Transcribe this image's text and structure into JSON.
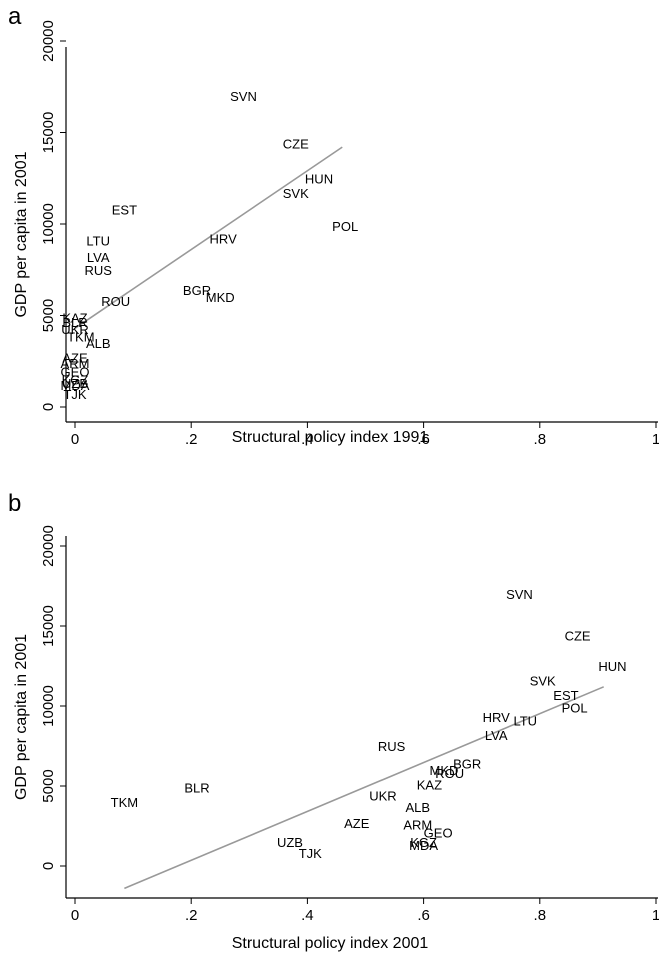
{
  "chart_data": [
    {
      "type": "scatter",
      "panel_label": "a",
      "xlabel": "Structural policy index 1991",
      "ylabel": "GDP per capita in 2001",
      "xlim": [
        0,
        1
      ],
      "ylim": [
        0,
        20000
      ],
      "x_ticks": [
        0,
        0.2,
        0.4,
        0.6,
        0.8,
        1
      ],
      "x_tick_labels": [
        "0",
        ".2",
        ".4",
        ".6",
        ".8",
        "1"
      ],
      "y_ticks": [
        0,
        5000,
        10000,
        15000,
        20000
      ],
      "y_tick_labels": [
        "0",
        "5000",
        "10000",
        "15000",
        "20000"
      ],
      "grid": false,
      "fit_line": {
        "x": [
          0,
          0.46
        ],
        "y": [
          4300,
          14200
        ],
        "color": "#999999"
      },
      "points": [
        {
          "label": "SVN",
          "x": 0.29,
          "y": 17000
        },
        {
          "label": "CZE",
          "x": 0.38,
          "y": 14400
        },
        {
          "label": "HUN",
          "x": 0.42,
          "y": 12500
        },
        {
          "label": "SVK",
          "x": 0.38,
          "y": 11700
        },
        {
          "label": "EST",
          "x": 0.085,
          "y": 10800
        },
        {
          "label": "POL",
          "x": 0.465,
          "y": 9900
        },
        {
          "label": "LTU",
          "x": 0.04,
          "y": 9100
        },
        {
          "label": "HRV",
          "x": 0.255,
          "y": 9200
        },
        {
          "label": "LVA",
          "x": 0.04,
          "y": 8200
        },
        {
          "label": "RUS",
          "x": 0.04,
          "y": 7500
        },
        {
          "label": "BGR",
          "x": 0.21,
          "y": 6400
        },
        {
          "label": "MKD",
          "x": 0.25,
          "y": 6000
        },
        {
          "label": "ROU",
          "x": 0.07,
          "y": 5800
        },
        {
          "label": "KAZ",
          "x": 0.0,
          "y": 4900
        },
        {
          "label": "BLR",
          "x": 0.0,
          "y": 4650
        },
        {
          "label": "UKR",
          "x": 0.0,
          "y": 4250
        },
        {
          "label": "TKM",
          "x": 0.01,
          "y": 3850
        },
        {
          "label": "ALB",
          "x": 0.04,
          "y": 3500
        },
        {
          "label": "AZE",
          "x": 0.0,
          "y": 2700
        },
        {
          "label": "ARM",
          "x": 0.0,
          "y": 2400
        },
        {
          "label": "GEO",
          "x": 0.0,
          "y": 1950
        },
        {
          "label": "KGZ",
          "x": 0.0,
          "y": 1500
        },
        {
          "label": "UZB",
          "x": 0.0,
          "y": 1300
        },
        {
          "label": "MDA",
          "x": 0.0,
          "y": 1200
        },
        {
          "label": "TJK",
          "x": 0.0,
          "y": 700
        }
      ]
    },
    {
      "type": "scatter",
      "panel_label": "b",
      "xlabel": "Structural policy index 2001",
      "ylabel": "GDP per capita in 2001",
      "xlim": [
        0,
        1
      ],
      "ylim": [
        0,
        20000
      ],
      "x_ticks": [
        0,
        0.2,
        0.4,
        0.6,
        0.8,
        1
      ],
      "x_tick_labels": [
        "0",
        ".2",
        ".4",
        ".6",
        ".8",
        "1"
      ],
      "y_ticks": [
        0,
        5000,
        10000,
        15000,
        20000
      ],
      "y_tick_labels": [
        "0",
        "5000",
        "10000",
        "15000",
        "20000"
      ],
      "grid": false,
      "fit_line": {
        "x": [
          0.085,
          0.91
        ],
        "y": [
          -1400,
          11200
        ],
        "color": "#999999"
      },
      "points": [
        {
          "label": "SVN",
          "x": 0.765,
          "y": 17000
        },
        {
          "label": "CZE",
          "x": 0.865,
          "y": 14400
        },
        {
          "label": "HUN",
          "x": 0.925,
          "y": 12500
        },
        {
          "label": "SVK",
          "x": 0.805,
          "y": 11600
        },
        {
          "label": "EST",
          "x": 0.845,
          "y": 10700
        },
        {
          "label": "POL",
          "x": 0.86,
          "y": 9900
        },
        {
          "label": "HRV",
          "x": 0.725,
          "y": 9300
        },
        {
          "label": "LTU",
          "x": 0.775,
          "y": 9100
        },
        {
          "label": "LVA",
          "x": 0.725,
          "y": 8200
        },
        {
          "label": "RUS",
          "x": 0.545,
          "y": 7500
        },
        {
          "label": "BGR",
          "x": 0.675,
          "y": 6400
        },
        {
          "label": "MKD",
          "x": 0.635,
          "y": 6000
        },
        {
          "label": "ROU",
          "x": 0.645,
          "y": 5800
        },
        {
          "label": "KAZ",
          "x": 0.61,
          "y": 5100
        },
        {
          "label": "BLR",
          "x": 0.21,
          "y": 4900
        },
        {
          "label": "UKR",
          "x": 0.53,
          "y": 4400
        },
        {
          "label": "TKM",
          "x": 0.085,
          "y": 4000
        },
        {
          "label": "ALB",
          "x": 0.59,
          "y": 3700
        },
        {
          "label": "AZE",
          "x": 0.485,
          "y": 2700
        },
        {
          "label": "ARM",
          "x": 0.59,
          "y": 2600
        },
        {
          "label": "GEO",
          "x": 0.625,
          "y": 2100
        },
        {
          "label": "KGZ",
          "x": 0.6,
          "y": 1500
        },
        {
          "label": "UZB",
          "x": 0.37,
          "y": 1500
        },
        {
          "label": "MDA",
          "x": 0.6,
          "y": 1300
        },
        {
          "label": "TJK",
          "x": 0.405,
          "y": 800
        }
      ]
    }
  ]
}
